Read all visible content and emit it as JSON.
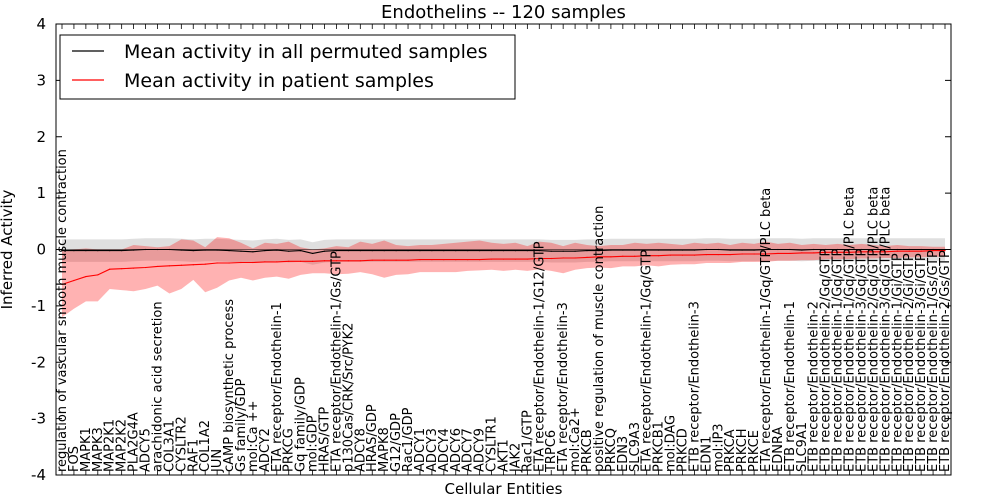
{
  "chart_data": {
    "type": "line",
    "title": "Endothelins -- 120 samples",
    "xlabel": "Cellular Entities",
    "ylabel": "Inferred Activity",
    "ylim": [
      -4,
      4
    ],
    "yticks": [
      -4,
      -3,
      -2,
      -1,
      0,
      1,
      2,
      3,
      4
    ],
    "legend_position": "top-left",
    "categories": [
      "regulation of vascular smooth muscle contraction",
      "FOS",
      "MAPK1",
      "MAPK3",
      "MAP2K1",
      "MAP2K2",
      "PLA2G4A",
      "ADCY5",
      "arachidonic acid secretion",
      "COL3A1",
      "CYSLTR2",
      "RAF1",
      "COL1A2",
      "JUN",
      "cAMP biosynthetic process",
      "Gs family/GDP",
      "mol:Ca ++",
      "ADCY2",
      "ETA receptor/Endothelin-1",
      "PRKCG",
      "Gq family/GDP",
      "mol:GDP",
      "HRAS/GTP",
      "ETA receptor/Endothelin-1/Gs/GTP",
      "p130Cas/CRK/Src/PYK2",
      "ADCY8",
      "HRAS/GDP",
      "MAPK8",
      "G12/GDP",
      "Rac1/GDP",
      "ADCY1",
      "ADCY3",
      "ADCY4",
      "ADCY6",
      "ADCY7",
      "ADCY9",
      "CYSLTR1",
      "AKT1",
      "JAK2",
      "Rac1/GTP",
      "ETA receptor/Endothelin-1/G12/GTP",
      "TRPC6",
      "ETA receptor/Endothelin-3",
      "mol:Ca2+",
      "PRKCB",
      "positive regulation of muscle contraction",
      "PRKCQ",
      "EDN3",
      "SLC9A3",
      "ETA receptor/Endothelin-1/Gq/GTP",
      "PRKCB1",
      "mol:DAG",
      "PRKCD",
      "ETB receptor/Endothelin-3",
      "EDN1",
      "mol:IP3",
      "PRKCA",
      "PRKCH",
      "PRKCE",
      "ETA receptor/Endothelin-1/Gq/GTP/PLC beta",
      "EDNRA",
      "ETB receptor/Endothelin-1",
      "SLC9A1",
      "ETB receptor/Endothelin-2",
      "ETB receptor/Endothelin-2/Gq/GTP",
      "ETB receptor/Endothelin-1/Gq/GTP",
      "ETB receptor/Endothelin-1/Gq/GTP/PLC beta",
      "ETB receptor/Endothelin-3/Gq/GTP",
      "ETB receptor/Endothelin-2/Gq/GTP/PLC beta",
      "ETB receptor/Endothelin-3/Gq/GTP/PLC beta",
      "ETB receptor/Endothelin-1/Gi/GTP",
      "ETB receptor/Endothelin-2/Gi/GTP",
      "ETB receptor/Endothelin-3/Gi/GTP",
      "ETB receptor/Endothelin-1/Gs/GTP",
      "ETB receptor/Endothelin-2/Gs/GTP"
    ],
    "series": [
      {
        "name": "Mean activity in all permuted samples",
        "color": "#000000",
        "values": [
          -0.02,
          -0.02,
          -0.02,
          -0.02,
          -0.02,
          -0.02,
          -0.01,
          0.0,
          0.0,
          0.0,
          -0.01,
          -0.02,
          -0.01,
          -0.01,
          -0.02,
          -0.03,
          -0.04,
          -0.02,
          -0.01,
          -0.03,
          -0.02,
          -0.07,
          -0.03,
          -0.02,
          -0.02,
          -0.02,
          -0.02,
          -0.02,
          -0.02,
          -0.02,
          -0.02,
          -0.02,
          -0.02,
          -0.02,
          -0.02,
          -0.02,
          -0.02,
          -0.02,
          -0.02,
          -0.02,
          -0.02,
          -0.03,
          -0.03,
          -0.03,
          -0.02,
          -0.02,
          -0.01,
          -0.01,
          -0.01,
          -0.01,
          -0.01,
          -0.01,
          -0.01,
          -0.01,
          0.0,
          0.0,
          -0.01,
          -0.01,
          -0.01,
          0.0,
          0.0,
          0.0,
          -0.01,
          0.0,
          0.0,
          0.0,
          0.0,
          0.0,
          0.0,
          0.0,
          0.0,
          0.0,
          0.0,
          0.0,
          0.0
        ],
        "band_lower": [
          -0.22,
          -0.22,
          -0.22,
          -0.22,
          -0.22,
          -0.22,
          -0.21,
          -0.2,
          -0.2,
          -0.2,
          -0.21,
          -0.22,
          -0.21,
          -0.21,
          -0.22,
          -0.23,
          -0.24,
          -0.22,
          -0.21,
          -0.23,
          -0.22,
          -0.27,
          -0.23,
          -0.22,
          -0.22,
          -0.22,
          -0.22,
          -0.22,
          -0.22,
          -0.22,
          -0.22,
          -0.22,
          -0.22,
          -0.22,
          -0.22,
          -0.22,
          -0.22,
          -0.22,
          -0.22,
          -0.22,
          -0.22,
          -0.23,
          -0.23,
          -0.23,
          -0.22,
          -0.22,
          -0.21,
          -0.21,
          -0.21,
          -0.21,
          -0.21,
          -0.21,
          -0.21,
          -0.21,
          -0.2,
          -0.2,
          -0.21,
          -0.21,
          -0.21,
          -0.2,
          -0.2,
          -0.2,
          -0.21,
          -0.2,
          -0.2,
          -0.2,
          -0.2,
          -0.2,
          -0.2,
          -0.2,
          -0.2,
          -0.2,
          -0.2,
          -0.2,
          -0.2
        ],
        "band_upper": [
          0.18,
          0.18,
          0.18,
          0.18,
          0.18,
          0.18,
          0.19,
          0.2,
          0.2,
          0.2,
          0.19,
          0.18,
          0.19,
          0.19,
          0.18,
          0.17,
          0.16,
          0.18,
          0.19,
          0.17,
          0.18,
          0.13,
          0.17,
          0.18,
          0.18,
          0.18,
          0.18,
          0.18,
          0.18,
          0.18,
          0.18,
          0.18,
          0.18,
          0.18,
          0.18,
          0.18,
          0.18,
          0.18,
          0.18,
          0.18,
          0.18,
          0.17,
          0.17,
          0.17,
          0.18,
          0.18,
          0.19,
          0.19,
          0.19,
          0.19,
          0.19,
          0.19,
          0.19,
          0.19,
          0.2,
          0.2,
          0.19,
          0.19,
          0.19,
          0.2,
          0.2,
          0.2,
          0.19,
          0.2,
          0.2,
          0.2,
          0.2,
          0.2,
          0.2,
          0.2,
          0.2,
          0.2,
          0.2,
          0.2,
          0.2
        ]
      },
      {
        "name": "Mean activity in patient samples",
        "color": "#ff0000",
        "values": [
          -0.62,
          -0.55,
          -0.48,
          -0.45,
          -0.35,
          -0.34,
          -0.33,
          -0.32,
          -0.3,
          -0.29,
          -0.28,
          -0.27,
          -0.26,
          -0.24,
          -0.24,
          -0.23,
          -0.23,
          -0.22,
          -0.22,
          -0.21,
          -0.21,
          -0.21,
          -0.2,
          -0.2,
          -0.2,
          -0.2,
          -0.19,
          -0.19,
          -0.19,
          -0.19,
          -0.18,
          -0.18,
          -0.18,
          -0.18,
          -0.18,
          -0.18,
          -0.17,
          -0.17,
          -0.17,
          -0.17,
          -0.16,
          -0.16,
          -0.15,
          -0.15,
          -0.14,
          -0.13,
          -0.13,
          -0.12,
          -0.12,
          -0.11,
          -0.11,
          -0.1,
          -0.1,
          -0.1,
          -0.09,
          -0.09,
          -0.09,
          -0.08,
          -0.08,
          -0.08,
          -0.07,
          -0.07,
          -0.06,
          -0.06,
          -0.05,
          -0.05,
          -0.05,
          -0.04,
          -0.04,
          -0.04,
          -0.03,
          -0.03,
          -0.03,
          -0.02,
          -0.02
        ],
        "band_lower": [
          -1.2,
          -1.05,
          -0.92,
          -0.92,
          -0.7,
          -0.72,
          -0.74,
          -0.7,
          -0.64,
          -0.78,
          -0.7,
          -0.54,
          -0.76,
          -0.68,
          -0.55,
          -0.5,
          -0.55,
          -0.5,
          -0.48,
          -0.52,
          -0.45,
          -0.42,
          -0.42,
          -0.44,
          -0.43,
          -0.4,
          -0.44,
          -0.5,
          -0.45,
          -0.44,
          -0.4,
          -0.4,
          -0.4,
          -0.4,
          -0.38,
          -0.37,
          -0.36,
          -0.38,
          -0.36,
          -0.38,
          -0.35,
          -0.38,
          -0.42,
          -0.36,
          -0.33,
          -0.32,
          -0.33,
          -0.3,
          -0.3,
          -0.28,
          -0.3,
          -0.27,
          -0.26,
          -0.26,
          -0.24,
          -0.24,
          -0.24,
          -0.22,
          -0.22,
          -0.22,
          -0.2,
          -0.2,
          -0.19,
          -0.19,
          -0.17,
          -0.17,
          -0.17,
          -0.16,
          -0.16,
          -0.15,
          -0.15,
          -0.14,
          -0.14,
          -0.13,
          -0.13
        ],
        "band_upper": [
          -0.02,
          0.0,
          0.02,
          0.0,
          0.0,
          0.0,
          0.08,
          0.06,
          0.04,
          0.06,
          0.18,
          0.16,
          0.04,
          0.22,
          0.2,
          0.12,
          0.02,
          0.12,
          0.1,
          0.14,
          0.04,
          0.0,
          0.02,
          0.06,
          0.04,
          0.14,
          0.1,
          0.16,
          0.08,
          0.06,
          0.08,
          0.08,
          0.1,
          0.12,
          0.14,
          0.16,
          0.12,
          0.1,
          0.12,
          0.06,
          0.14,
          0.12,
          0.06,
          0.12,
          0.08,
          0.06,
          0.08,
          0.08,
          0.12,
          0.1,
          0.12,
          0.1,
          0.08,
          0.12,
          0.1,
          0.12,
          0.08,
          0.12,
          0.1,
          0.14,
          0.1,
          0.12,
          0.08,
          0.1,
          0.08,
          0.1,
          0.08,
          0.1,
          0.08,
          0.06,
          0.08,
          0.06,
          0.06,
          0.05,
          0.05
        ]
      }
    ]
  }
}
